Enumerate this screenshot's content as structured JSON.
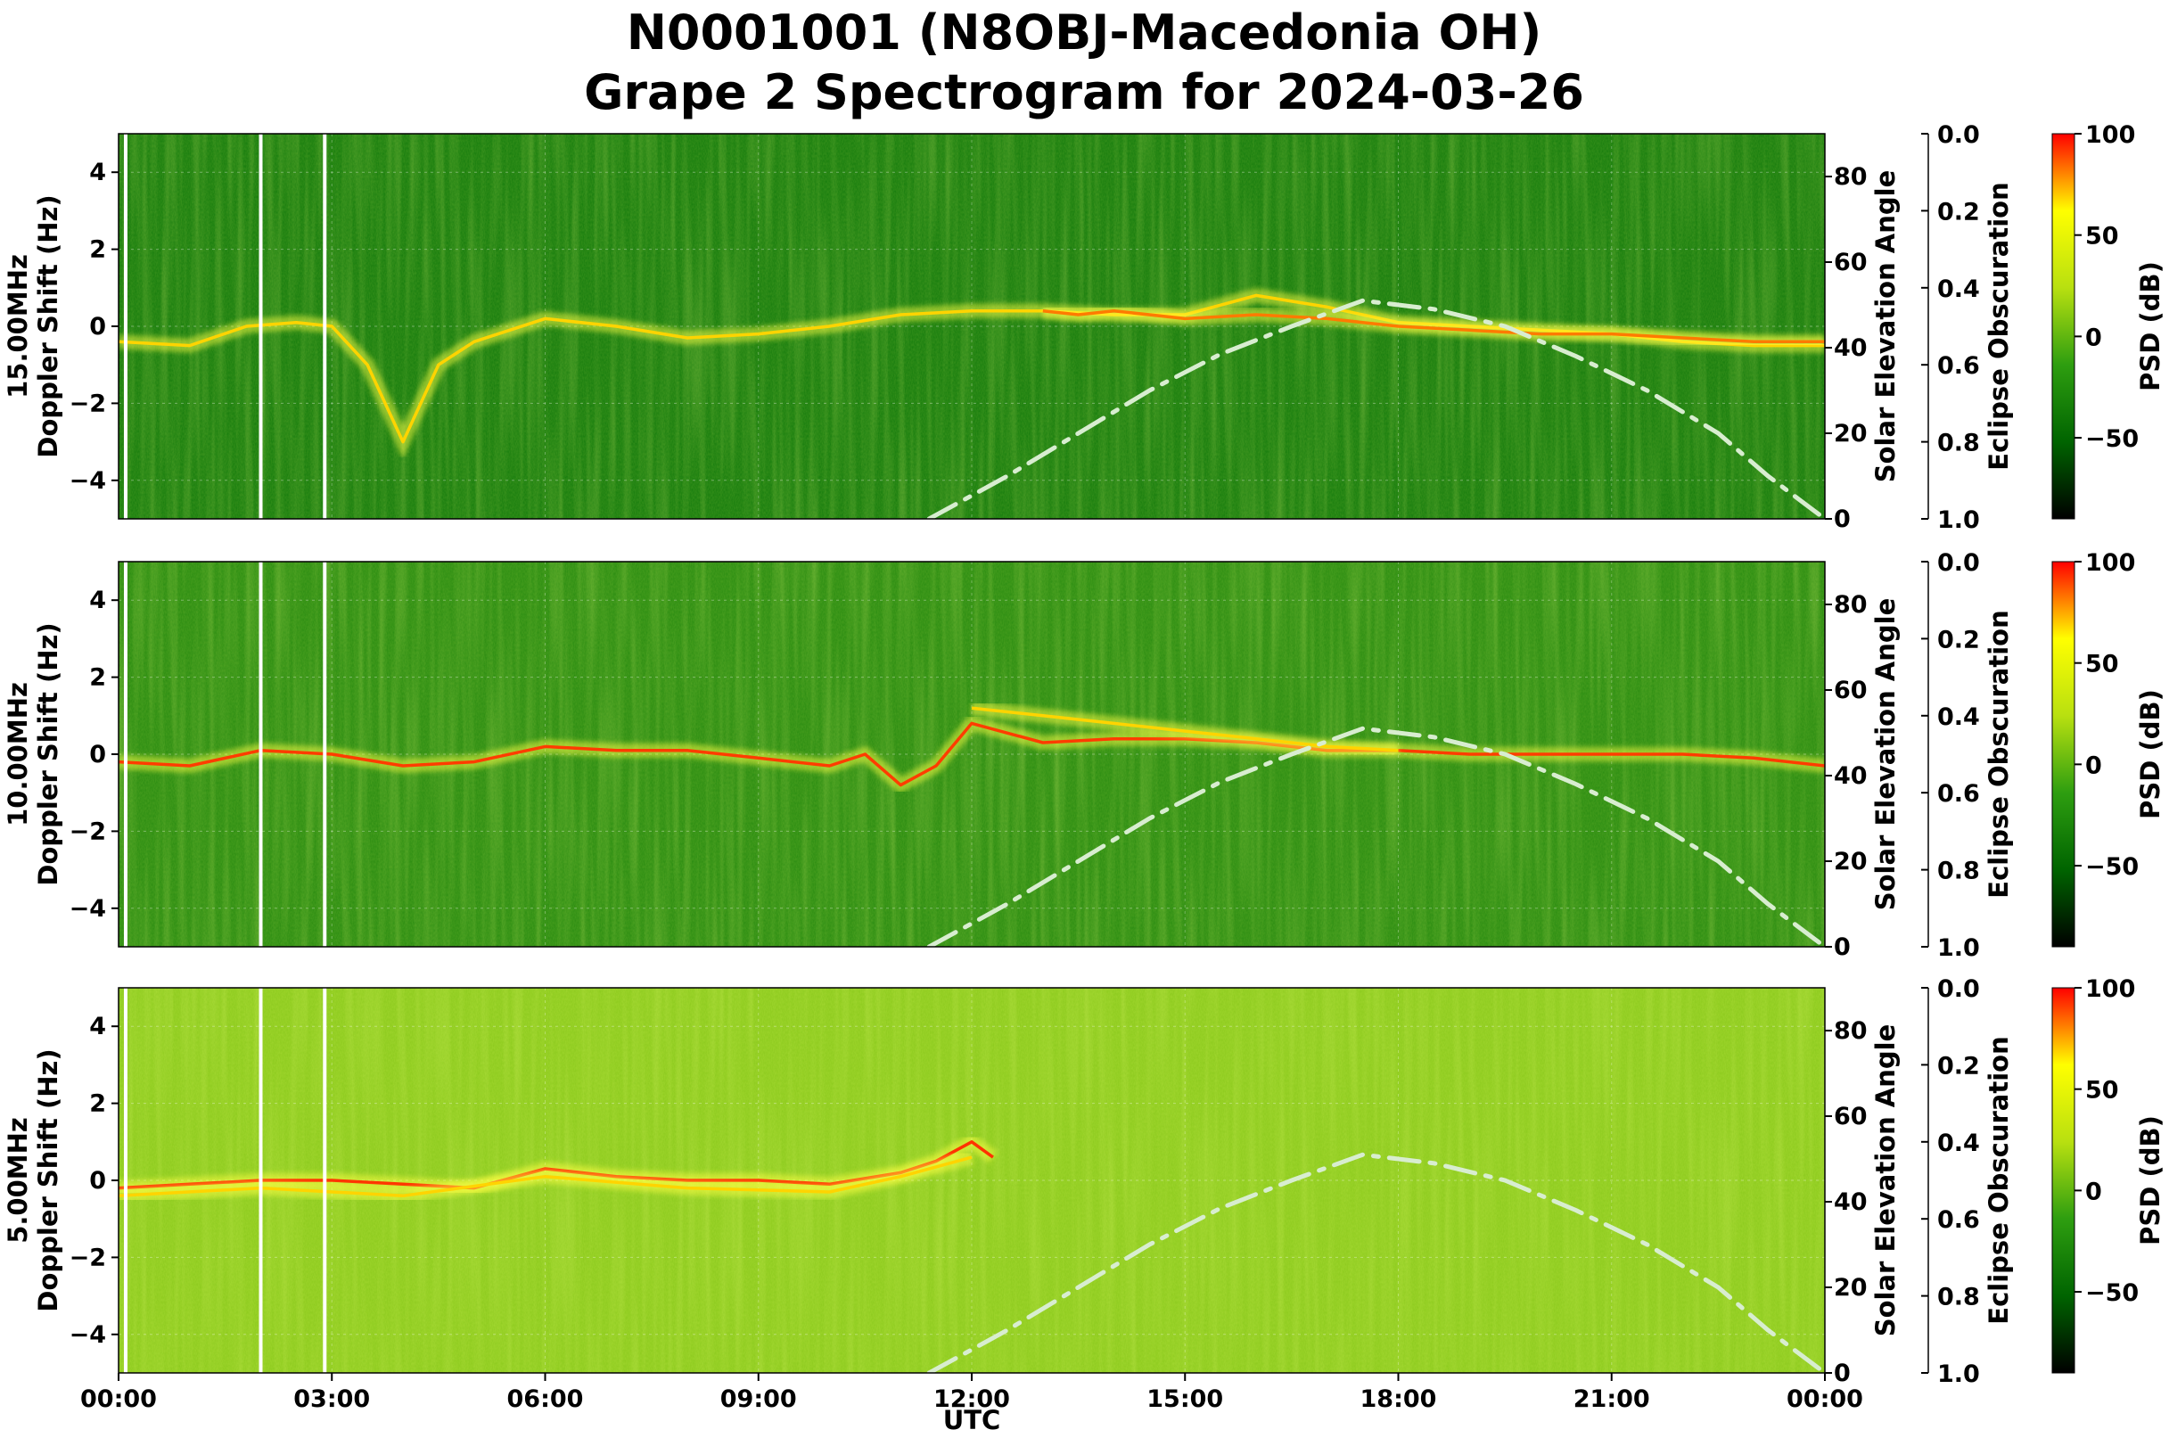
{
  "chart_data": {
    "type": "heatmap",
    "title": "N0001001 (N8OBJ-Macedonia OH)",
    "subtitle": "Grape 2 Spectrogram for 2024-03-26",
    "xlabel": "UTC",
    "x_tick_labels": [
      "00:00",
      "03:00",
      "06:00",
      "09:00",
      "12:00",
      "15:00",
      "18:00",
      "21:00",
      "00:00"
    ],
    "xlim_hours": [
      0,
      24
    ],
    "ylim": [
      -5,
      5
    ],
    "y_ticks": [
      -4,
      -2,
      0,
      2,
      4
    ],
    "y_tick_labels": [
      "−4",
      "−2",
      "0",
      "2",
      "4"
    ],
    "solar_axis": {
      "label": "Solar Elevation Angle",
      "ylim": [
        0,
        90
      ],
      "ticks": [
        0,
        20,
        40,
        60,
        80
      ],
      "tick_labels": [
        "0",
        "20",
        "40",
        "60",
        "80"
      ]
    },
    "eclipse_axis": {
      "label": "Eclipse Obscuration",
      "ylim": [
        1.0,
        0.0
      ],
      "tick_labels": [
        "0.0",
        "0.2",
        "0.4",
        "0.6",
        "0.8",
        "1.0"
      ]
    },
    "colorbar": {
      "label": "PSD (dB)",
      "range": [
        -90,
        100
      ],
      "ticks": [
        100,
        50,
        0,
        -50
      ],
      "tick_labels": [
        "100",
        "50",
        "0",
        "−50"
      ],
      "colors": [
        "#000000",
        "#006400",
        "#2e9e10",
        "#b8e010",
        "#ffff00",
        "#ff0000"
      ]
    },
    "solar_elevation_curve": {
      "style": "dash-dot",
      "color": "#d8edd0",
      "points": [
        [
          11.4,
          0
        ],
        [
          12.5,
          10
        ],
        [
          13.5,
          20
        ],
        [
          14.5,
          30
        ],
        [
          15.5,
          38.5
        ],
        [
          16.5,
          45
        ],
        [
          17.5,
          51
        ],
        [
          18.5,
          49
        ],
        [
          19.5,
          45
        ],
        [
          20.5,
          38
        ],
        [
          21.5,
          30
        ],
        [
          22.5,
          20
        ],
        [
          23.2,
          10
        ],
        [
          24.0,
          0
        ]
      ]
    },
    "data_gaps_hours": [
      0.1,
      2.0,
      2.9
    ],
    "panels": [
      {
        "label": "15.00MHz\nDoppler Shift (Hz)",
        "label_line1": "15.00MHz",
        "label_line2": "Doppler Shift (Hz)",
        "background": "#1b7f10",
        "traces": [
          {
            "color": "#ffd400",
            "points": [
              [
                0,
                -0.4
              ],
              [
                1,
                -0.5
              ],
              [
                1.8,
                0
              ],
              [
                2.5,
                0.1
              ],
              [
                3,
                0
              ],
              [
                3.5,
                -1.0
              ],
              [
                4,
                -3.0
              ],
              [
                4.5,
                -1.0
              ],
              [
                5,
                -0.4
              ],
              [
                6,
                0.2
              ],
              [
                7,
                0
              ],
              [
                8,
                -0.3
              ],
              [
                9,
                -0.2
              ],
              [
                10,
                0
              ],
              [
                11,
                0.3
              ],
              [
                12,
                0.4
              ],
              [
                13,
                0.4
              ],
              [
                14,
                0.3
              ],
              [
                15,
                0.3
              ],
              [
                16,
                0.8
              ],
              [
                17,
                0.5
              ],
              [
                18,
                0.1
              ],
              [
                19,
                0
              ],
              [
                20,
                -0.1
              ],
              [
                21,
                -0.2
              ],
              [
                22,
                -0.4
              ],
              [
                23,
                -0.5
              ],
              [
                24,
                -0.5
              ]
            ]
          },
          {
            "color": "#ff7a00",
            "points": [
              [
                13,
                0.4
              ],
              [
                13.5,
                0.3
              ],
              [
                14,
                0.4
              ],
              [
                15,
                0.2
              ],
              [
                16,
                0.3
              ],
              [
                17,
                0.2
              ],
              [
                18,
                0
              ],
              [
                19,
                -0.1
              ],
              [
                20,
                -0.2
              ],
              [
                21,
                -0.2
              ],
              [
                22,
                -0.3
              ],
              [
                23,
                -0.4
              ],
              [
                24,
                -0.4
              ]
            ]
          }
        ]
      },
      {
        "label": "10.00MHz\nDoppler Shift (Hz)",
        "label_line1": "10.00MHz",
        "label_line2": "Doppler Shift (Hz)",
        "background": "#2f8f14",
        "traces": [
          {
            "color": "#ff3c00",
            "points": [
              [
                0,
                -0.2
              ],
              [
                1,
                -0.3
              ],
              [
                2,
                0.1
              ],
              [
                3,
                0
              ],
              [
                4,
                -0.3
              ],
              [
                5,
                -0.2
              ],
              [
                6,
                0.2
              ],
              [
                7,
                0.1
              ],
              [
                8,
                0.1
              ],
              [
                9,
                -0.1
              ],
              [
                10,
                -0.3
              ],
              [
                10.5,
                0
              ],
              [
                11,
                -0.8
              ],
              [
                11.5,
                -0.3
              ],
              [
                12,
                0.8
              ],
              [
                13,
                0.3
              ],
              [
                14,
                0.4
              ],
              [
                15,
                0.4
              ],
              [
                16,
                0.3
              ],
              [
                17,
                0.1
              ],
              [
                18,
                0.1
              ],
              [
                19,
                0
              ],
              [
                20,
                0
              ],
              [
                21,
                0
              ],
              [
                22,
                0
              ],
              [
                23,
                -0.1
              ],
              [
                24,
                -0.3
              ]
            ]
          },
          {
            "color": "#ffd400",
            "points": [
              [
                12,
                1.2
              ],
              [
                13,
                1.0
              ],
              [
                14,
                0.8
              ],
              [
                15,
                0.6
              ],
              [
                16,
                0.4
              ],
              [
                17,
                0.2
              ],
              [
                18,
                0.1
              ]
            ]
          }
        ]
      },
      {
        "label": "5.00MHz\nDoppler Shift (Hz)",
        "label_line1": "5.00MHz",
        "label_line2": "Doppler Shift (Hz)",
        "background": "#8fcc20",
        "traces": [
          {
            "color": "#ff3200",
            "points": [
              [
                0,
                -0.2
              ],
              [
                1,
                -0.1
              ],
              [
                2,
                0
              ],
              [
                3,
                0
              ],
              [
                4,
                -0.1
              ],
              [
                5,
                -0.2
              ],
              [
                6,
                0.3
              ],
              [
                7,
                0.1
              ],
              [
                8,
                0
              ],
              [
                9,
                0
              ],
              [
                10,
                -0.1
              ],
              [
                11,
                0.2
              ],
              [
                11.5,
                0.5
              ],
              [
                12,
                1.0
              ],
              [
                12.3,
                0.6
              ]
            ]
          },
          {
            "color": "#ffd400",
            "points": [
              [
                0,
                -0.4
              ],
              [
                2,
                -0.2
              ],
              [
                4,
                -0.4
              ],
              [
                6,
                0.1
              ],
              [
                8,
                -0.2
              ],
              [
                10,
                -0.3
              ],
              [
                11,
                0.1
              ],
              [
                12,
                0.6
              ]
            ]
          }
        ]
      }
    ]
  }
}
